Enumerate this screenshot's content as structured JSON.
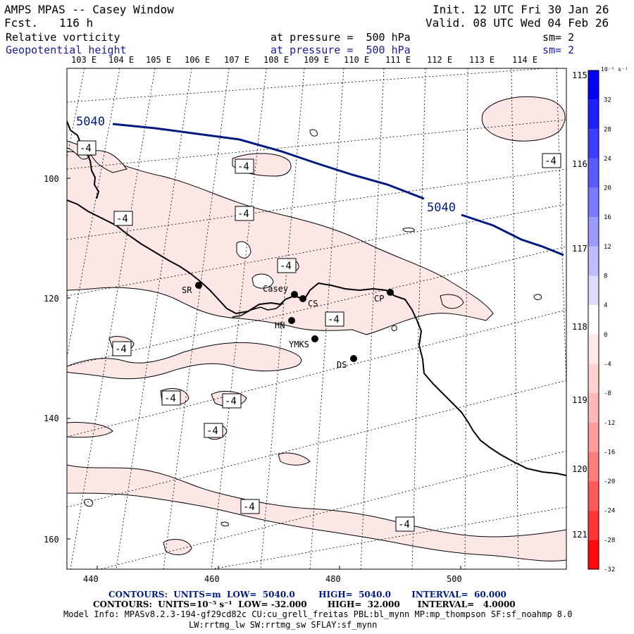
{
  "header": {
    "model": "AMPS MPAS -- Casey Window",
    "fcst_label": "Fcst.",
    "fcst_value": "116 h",
    "init": "Init. 12 UTC Fri 30 Jan 26",
    "valid": "Valid. 08 UTC Wed 04 Feb 26",
    "field1": {
      "name": "Relative vorticity",
      "pressure": "at pressure =  500 hPa",
      "sm": "sm= 2"
    },
    "field2": {
      "name": "Geopotential height",
      "pressure": "at pressure =  500 hPa",
      "sm": "sm= 2"
    }
  },
  "map": {
    "top_lon_labels": [
      "103 E",
      "104 E",
      "105 E",
      "106 E",
      "107 E",
      "108 E",
      "109 E",
      "110 E",
      "111 E",
      "112 E",
      "113 E",
      "114 E"
    ],
    "right_lat_labels": [
      "115 E",
      "116 E",
      "117 E",
      "118 E",
      "119 E",
      "120 E",
      "121 E"
    ],
    "x_ticks": [
      "440",
      "460",
      "480",
      "500"
    ],
    "y_ticks": [
      "100",
      "120",
      "140",
      "160"
    ],
    "height_contour_label": "5040",
    "vort_label": "-4",
    "stations": [
      {
        "name": "SR"
      },
      {
        "name": "Casey"
      },
      {
        "name": "CS"
      },
      {
        "name": "CP"
      },
      {
        "name": "HN"
      },
      {
        "name": "YMKS"
      },
      {
        "name": "DS"
      }
    ]
  },
  "colorbar": {
    "unit": "10⁻⁵ s⁻¹",
    "levels": [
      "32",
      "28",
      "24",
      "20",
      "16",
      "12",
      "8",
      "4",
      "0",
      "-4",
      "-8",
      "-12",
      "-16",
      "-20",
      "-24",
      "-28",
      "-32"
    ],
    "colors": [
      "#0000ff",
      "#2020ff",
      "#3c3cff",
      "#5a5aff",
      "#7a7aff",
      "#9a9aff",
      "#bcbcff",
      "#dcdcff",
      "#ffffff",
      "#ffe8e8",
      "#ffd2d2",
      "#ffb8b8",
      "#ff9c9c",
      "#ff7c7c",
      "#ff5a5a",
      "#ff3434",
      "#ff0a0a"
    ]
  },
  "footer": {
    "contour1": "CONTOURS:  UNITS=m  LOW=  5040.0        HIGH=  5040.0       INTERVAL=  60.000",
    "contour2": "CONTOURS:  UNITS=10⁻⁵ s⁻¹  LOW= -32.000       HIGH=  32.000      INTERVAL=   4.0000",
    "model_info": "Model Info: MPASv8.2.3-194-gf29cd82c CU:cu_grell_freitas PBL:bl_mynn MP:mp_thompson SF:sf_noahmp 8.0",
    "model_info2": "LW:rrtmg_lw SW:rrtmg_sw SFLAY:sf_mynn"
  }
}
